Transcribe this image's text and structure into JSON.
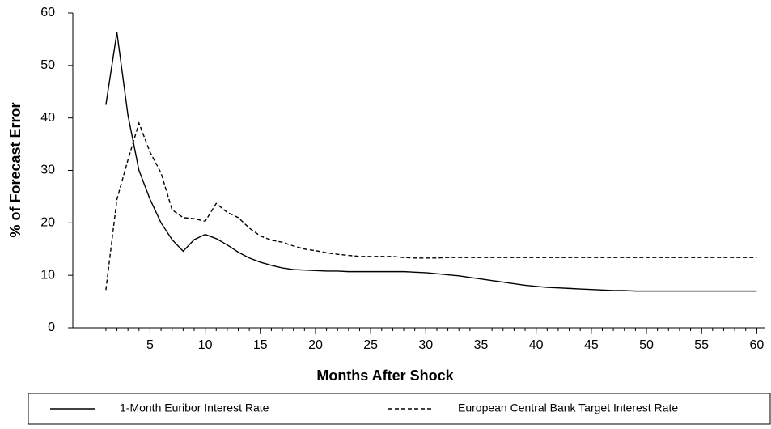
{
  "chart_data": {
    "type": "line",
    "xlabel": "Months After Shock",
    "ylabel": "% of Forecast Error",
    "x": [
      1,
      2,
      3,
      4,
      5,
      6,
      7,
      8,
      9,
      10,
      11,
      12,
      13,
      14,
      15,
      16,
      17,
      18,
      19,
      20,
      21,
      22,
      23,
      24,
      25,
      26,
      27,
      28,
      29,
      30,
      31,
      32,
      33,
      34,
      35,
      36,
      37,
      38,
      39,
      40,
      41,
      42,
      43,
      44,
      45,
      46,
      47,
      48,
      49,
      50,
      51,
      52,
      53,
      54,
      55,
      56,
      57,
      58,
      59,
      60
    ],
    "series": [
      {
        "name": "1-Month Euribor Interest Rate",
        "color": "#000000",
        "style": "solid",
        "values": [
          42.5,
          56.3,
          40.5,
          30,
          24.5,
          20,
          16.8,
          14.6,
          16.8,
          17.8,
          17,
          15.8,
          14.4,
          13.3,
          12.5,
          11.9,
          11.4,
          11.1,
          11,
          10.9,
          10.8,
          10.8,
          10.7,
          10.7,
          10.7,
          10.7,
          10.7,
          10.7,
          10.6,
          10.5,
          10.3,
          10.1,
          9.9,
          9.6,
          9.3,
          9,
          8.7,
          8.4,
          8.1,
          7.9,
          7.7,
          7.6,
          7.5,
          7.4,
          7.3,
          7.2,
          7.1,
          7.1,
          7,
          7,
          7,
          7,
          7,
          7,
          7,
          7,
          7,
          7,
          7,
          7
        ]
      },
      {
        "name": "European Central Bank Target Interest Rate",
        "color": "#000000",
        "style": "dashed",
        "values": [
          7.2,
          24.5,
          32,
          39,
          33.5,
          29.5,
          22.5,
          21,
          20.8,
          20.3,
          23.7,
          22,
          21,
          19,
          17.5,
          16.7,
          16.3,
          15.6,
          15,
          14.7,
          14.3,
          14,
          13.8,
          13.6,
          13.6,
          13.6,
          13.6,
          13.4,
          13.3,
          13.3,
          13.3,
          13.4,
          13.4,
          13.4,
          13.4,
          13.4,
          13.4,
          13.4,
          13.4,
          13.4,
          13.4,
          13.4,
          13.4,
          13.4,
          13.4,
          13.4,
          13.4,
          13.4,
          13.4,
          13.4,
          13.4,
          13.4,
          13.4,
          13.4,
          13.4,
          13.4,
          13.4,
          13.4,
          13.4,
          13.4
        ]
      }
    ],
    "xlim": [
      -2,
      61
    ],
    "xticks": [
      5,
      10,
      15,
      20,
      25,
      30,
      35,
      40,
      45,
      50,
      55,
      60
    ],
    "ylim": [
      0,
      60
    ],
    "yticks": [
      0,
      10,
      20,
      30,
      40,
      50,
      60
    ],
    "grid": false,
    "legend": "bottom"
  }
}
